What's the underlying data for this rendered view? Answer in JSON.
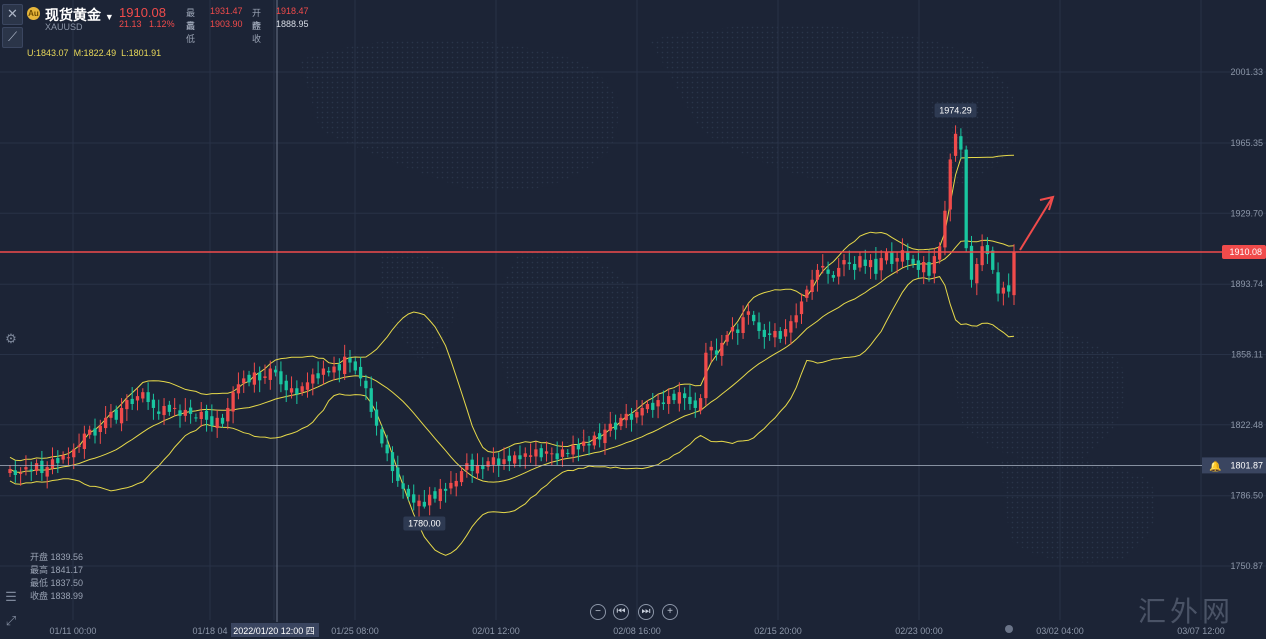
{
  "header": {
    "title": "现货黄金",
    "symbol": "XAUUSD",
    "price": "1910.08",
    "change_abs": "21.13",
    "change_pct": "1.12%",
    "high_label": "最高",
    "high": "1931.47",
    "open_label": "开盘",
    "open": "1918.47",
    "low_label": "最低",
    "low": "1903.90",
    "prev_label": "昨收",
    "prev": "1888.95"
  },
  "bollinger": {
    "upper": "U:1843.07",
    "mid": "M:1822.49",
    "low": "L:1801.91"
  },
  "ohlc_panel": {
    "open": "开盘 1839.56",
    "high": "最高 1841.17",
    "low": "最低 1837.50",
    "close": "收盘 1838.99"
  },
  "nav": {
    "zoom_out": "−",
    "prev": "⏮",
    "next": "⏭",
    "zoom_in": "+"
  },
  "watermark": "汇外网",
  "colors": {
    "up": "#f04b4b",
    "down": "#19c6a0",
    "band": "#e6d94a",
    "bg": "#1c2436",
    "current": "#f04b4b"
  },
  "chart_data": {
    "type": "candlestick",
    "y_axis_ticks": [
      "2001.33",
      "1965.35",
      "1929.70",
      "1893.74",
      "1858.11",
      "1822.48",
      "1786.50",
      "1750.87"
    ],
    "ylim": [
      1730,
      2040
    ],
    "x_axis_ticks": [
      "01/11 00:00",
      "01/18 04",
      "2022/01/20 12:00 四",
      "01/25 08:00",
      "02/01 12:00",
      "02/08 16:00",
      "02/15 20:00",
      "02/23 00:00",
      "03/02 04:00",
      "03/07 12:00"
    ],
    "current_price": "1910.08",
    "crosshair_price": "1801.87",
    "annotations": [
      {
        "text": "1974.29",
        "value": 1974.29
      },
      {
        "text": "1780.00",
        "value": 1780.0
      }
    ],
    "close_series": [
      1800,
      1797,
      1798,
      1801,
      1799,
      1803,
      1798,
      1801,
      1805,
      1803,
      1807,
      1806,
      1810,
      1812,
      1818,
      1820,
      1817,
      1822,
      1826,
      1829,
      1825,
      1831,
      1835,
      1833,
      1837,
      1839,
      1834,
      1831,
      1828,
      1832,
      1829,
      1831,
      1827,
      1830,
      1828,
      1826,
      1829,
      1825,
      1822,
      1826,
      1823,
      1831,
      1839,
      1843,
      1846,
      1844,
      1849,
      1845,
      1847,
      1851,
      1849,
      1843,
      1840,
      1841,
      1838,
      1842,
      1844,
      1848,
      1846,
      1851,
      1849,
      1852,
      1850,
      1857,
      1854,
      1850,
      1846,
      1841,
      1829,
      1822,
      1813,
      1808,
      1799,
      1794,
      1790,
      1786,
      1783,
      1784,
      1781,
      1787,
      1785,
      1790,
      1789,
      1793,
      1794,
      1799,
      1803,
      1799,
      1802,
      1800,
      1804,
      1806,
      1802,
      1805,
      1804,
      1807,
      1805,
      1808,
      1807,
      1810,
      1806,
      1809,
      1808,
      1805,
      1810,
      1808,
      1812,
      1810,
      1814,
      1812,
      1817,
      1815,
      1820,
      1823,
      1820,
      1826,
      1828,
      1825,
      1829,
      1831,
      1833,
      1830,
      1835,
      1833,
      1837,
      1835,
      1839,
      1836,
      1833,
      1831,
      1836,
      1859,
      1862,
      1858,
      1864,
      1868,
      1872,
      1869,
      1877,
      1880,
      1875,
      1870,
      1867,
      1868,
      1870,
      1866,
      1871,
      1875,
      1878,
      1885,
      1891,
      1896,
      1901,
      1903,
      1899,
      1897,
      1902,
      1906,
      1904,
      1901,
      1908,
      1903,
      1906,
      1899,
      1907,
      1910,
      1904,
      1907,
      1911,
      1906,
      1904,
      1901,
      1905,
      1898,
      1908,
      1913,
      1931,
      1957,
      1970,
      1962,
      1912,
      1896,
      1904,
      1913,
      1909,
      1901,
      1889,
      1892,
      1890,
      1910
    ]
  }
}
